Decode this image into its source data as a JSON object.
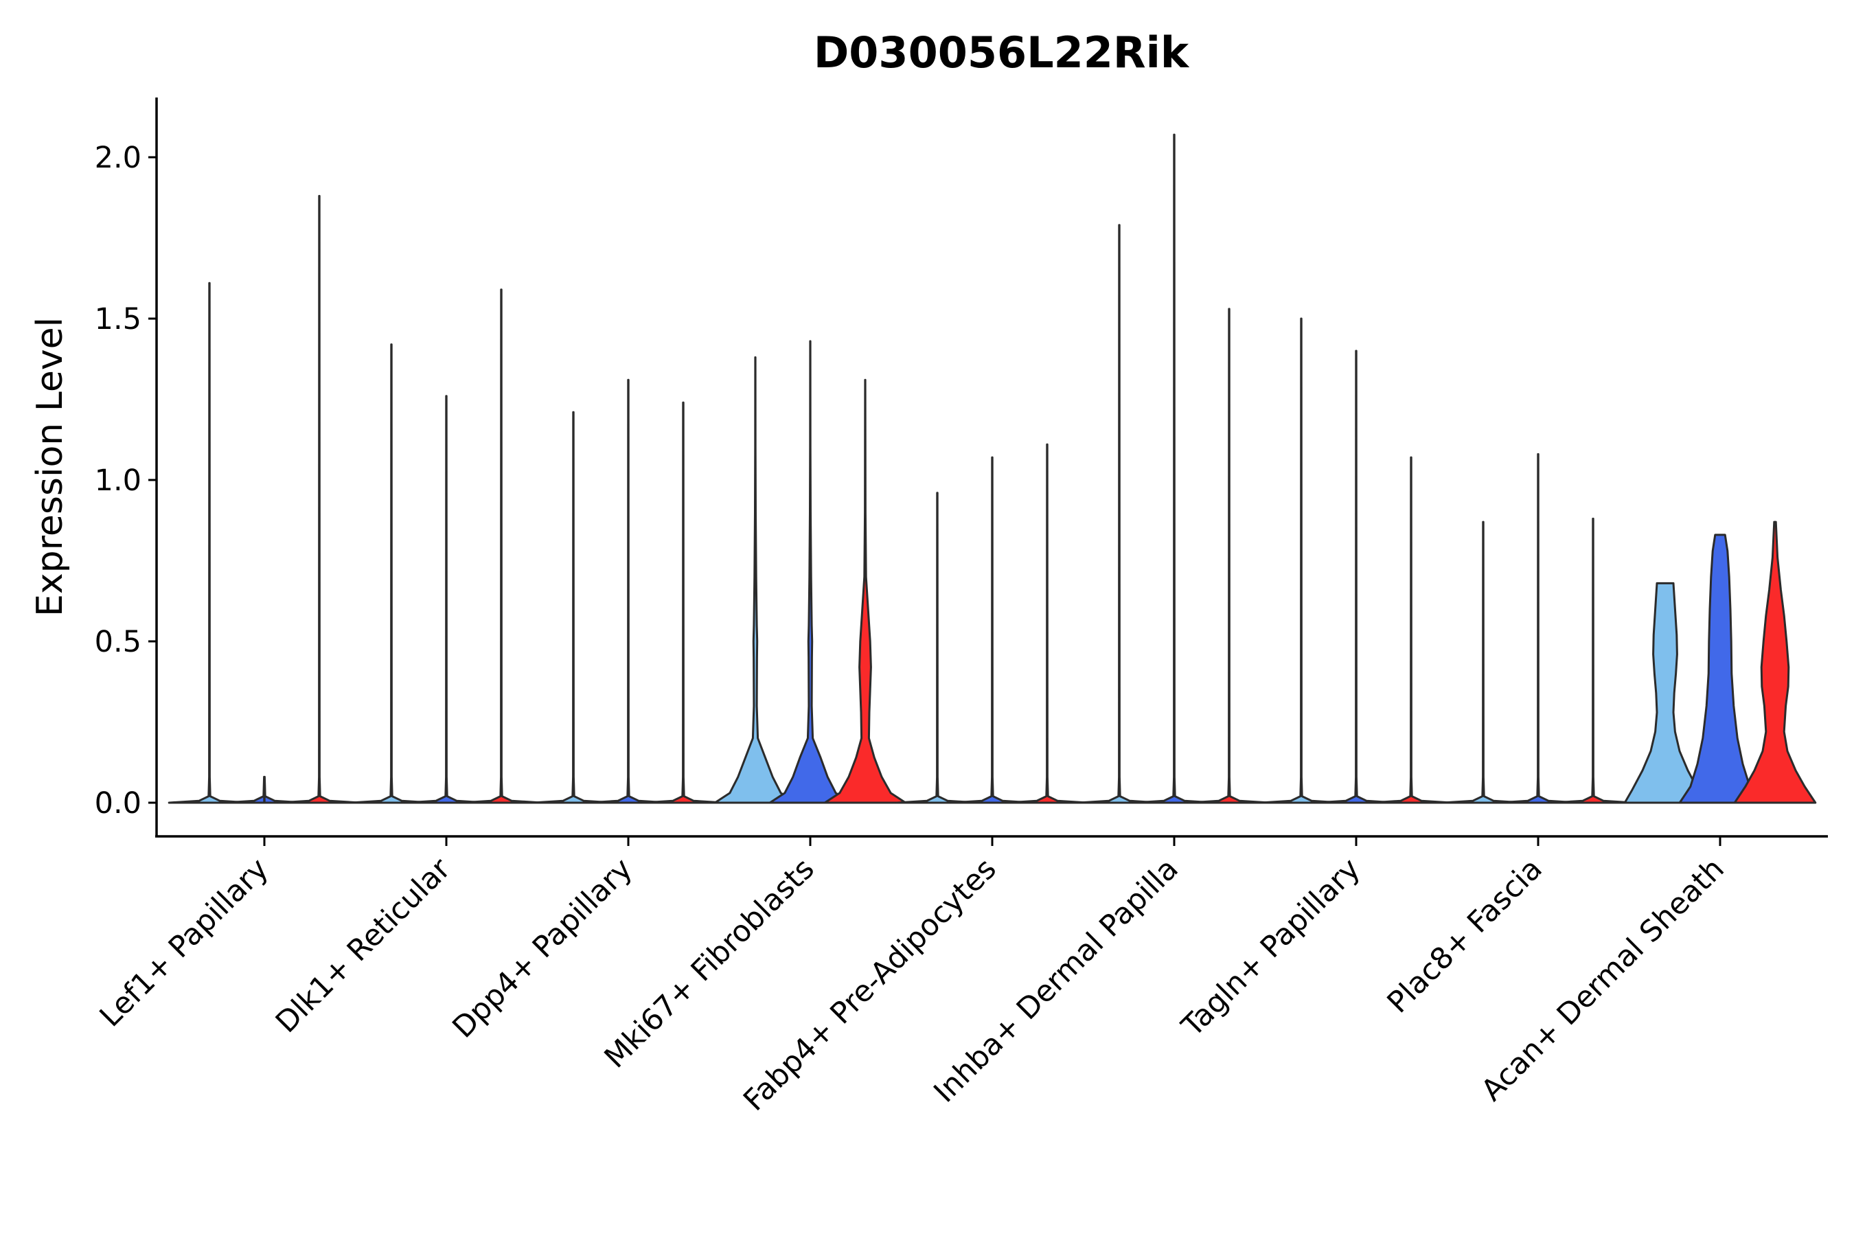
{
  "chart_data": {
    "type": "violin",
    "title": "D030056L22Rik",
    "xlabel": "",
    "ylabel": "Expression Level",
    "ylim": [
      -0.1,
      2.18
    ],
    "yticks": [
      "0.0",
      "0.5",
      "1.0",
      "1.5",
      "2.0"
    ],
    "legend": "none",
    "grid": false,
    "split_colors": [
      "#7fbfed",
      "#4169e9",
      "#fa2a2a"
    ],
    "categories": [
      "Lef1+ Papillary",
      "Dlk1+ Reticular",
      "Dpp4+ Papillary",
      "Mki67+ Fibroblasts",
      "Fabp4+ Pre-Adipocytes",
      "Inhba+ Dermal Papilla",
      "Tagln+ Papillary",
      "Plac8+ Fascia",
      "Acan+ Dermal Sheath"
    ],
    "violin_max": [
      [
        1.61,
        0.0,
        1.88
      ],
      [
        1.42,
        1.26,
        1.59
      ],
      [
        1.21,
        1.31,
        1.24
      ],
      [
        1.38,
        1.43,
        1.31
      ],
      [
        0.96,
        1.07,
        1.11
      ],
      [
        1.79,
        2.07,
        1.53
      ],
      [
        1.5,
        1.4,
        1.07
      ],
      [
        0.87,
        1.08,
        0.88
      ],
      [
        0.68,
        0.83,
        0.87
      ]
    ],
    "violin_shapes": {
      "Mki67+ Fibroblasts": [
        [
          [
            0,
            0.98
          ],
          [
            0.03,
            0.62
          ],
          [
            0.08,
            0.42
          ],
          [
            0.14,
            0.24
          ],
          [
            0.2,
            0.06
          ],
          [
            0.3,
            0.035
          ],
          [
            0.45,
            0.04
          ],
          [
            0.5,
            0.045
          ],
          [
            0.55,
            0.035
          ],
          [
            0.7,
            0.02
          ],
          [
            0.9,
            0.008
          ],
          [
            1.1,
            0.004
          ],
          [
            1.38,
            0.002
          ]
        ],
        [
          [
            0,
            0.98
          ],
          [
            0.03,
            0.62
          ],
          [
            0.08,
            0.42
          ],
          [
            0.14,
            0.25
          ],
          [
            0.2,
            0.06
          ],
          [
            0.3,
            0.035
          ],
          [
            0.45,
            0.04
          ],
          [
            0.5,
            0.045
          ],
          [
            0.55,
            0.035
          ],
          [
            0.7,
            0.02
          ],
          [
            0.9,
            0.008
          ],
          [
            1.1,
            0.004
          ],
          [
            1.43,
            0.002
          ]
        ],
        [
          [
            0,
            0.98
          ],
          [
            0.03,
            0.62
          ],
          [
            0.08,
            0.4
          ],
          [
            0.14,
            0.22
          ],
          [
            0.2,
            0.09
          ],
          [
            0.28,
            0.1
          ],
          [
            0.35,
            0.12
          ],
          [
            0.42,
            0.14
          ],
          [
            0.5,
            0.12
          ],
          [
            0.58,
            0.08
          ],
          [
            0.7,
            0.02
          ],
          [
            0.9,
            0.006
          ],
          [
            1.31,
            0.002
          ]
        ]
      ],
      "Acan+ Dermal Sheath": [
        [
          [
            0,
            0.98
          ],
          [
            0.04,
            0.8
          ],
          [
            0.1,
            0.55
          ],
          [
            0.16,
            0.35
          ],
          [
            0.22,
            0.24
          ],
          [
            0.28,
            0.2
          ],
          [
            0.34,
            0.22
          ],
          [
            0.4,
            0.26
          ],
          [
            0.46,
            0.29
          ],
          [
            0.52,
            0.28
          ],
          [
            0.6,
            0.24
          ],
          [
            0.68,
            0.2
          ]
        ],
        [
          [
            0,
            0.98
          ],
          [
            0.05,
            0.72
          ],
          [
            0.12,
            0.55
          ],
          [
            0.2,
            0.42
          ],
          [
            0.3,
            0.33
          ],
          [
            0.4,
            0.28
          ],
          [
            0.5,
            0.27
          ],
          [
            0.6,
            0.25
          ],
          [
            0.7,
            0.22
          ],
          [
            0.78,
            0.18
          ],
          [
            0.83,
            0.12
          ]
        ],
        [
          [
            0,
            0.98
          ],
          [
            0.05,
            0.72
          ],
          [
            0.1,
            0.5
          ],
          [
            0.16,
            0.3
          ],
          [
            0.22,
            0.22
          ],
          [
            0.3,
            0.26
          ],
          [
            0.36,
            0.32
          ],
          [
            0.42,
            0.33
          ],
          [
            0.5,
            0.28
          ],
          [
            0.58,
            0.22
          ],
          [
            0.66,
            0.14
          ],
          [
            0.76,
            0.06
          ],
          [
            0.87,
            0.02
          ]
        ]
      ]
    }
  }
}
